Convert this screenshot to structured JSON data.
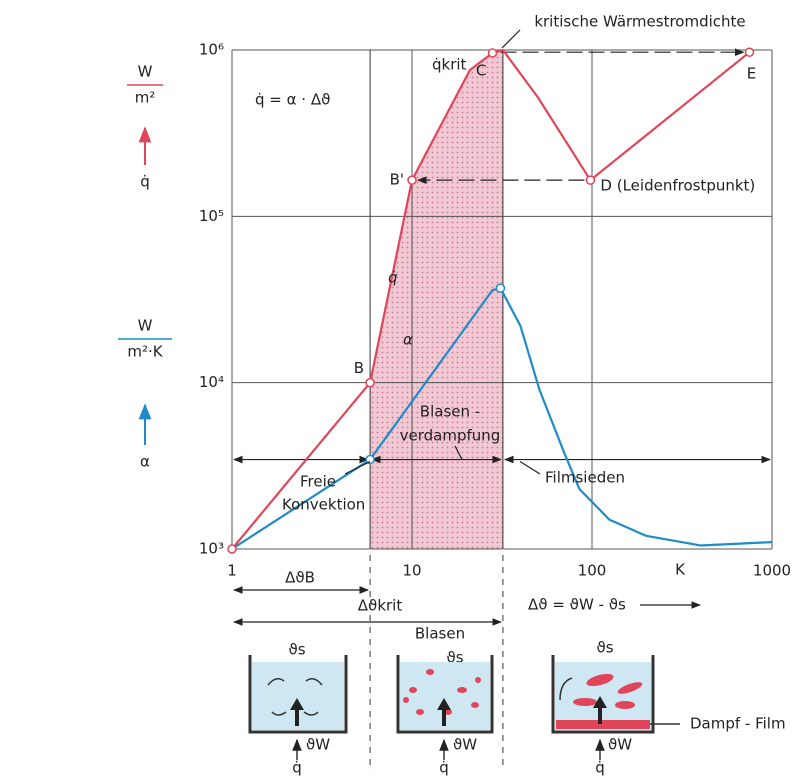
{
  "chart_data": {
    "type": "line",
    "xlim": [
      1,
      1000
    ],
    "ylim": [
      1000,
      1000000
    ],
    "log": true,
    "grid": true,
    "xticks": [
      1,
      10,
      100,
      1000
    ],
    "yticks": [
      {
        "value": 1000,
        "label": "10³"
      },
      {
        "value": 10000,
        "label": "10⁴"
      },
      {
        "value": 100000,
        "label": "10⁵"
      },
      {
        "value": 1000000,
        "label": "10⁶"
      }
    ],
    "series": [
      {
        "name": "q̇",
        "color": "#e0455a",
        "x": [
          1,
          5.85,
          10,
          21,
          28,
          32,
          50,
          98,
          750
        ],
        "values": [
          1000,
          10000,
          165000,
          760000,
          960000,
          1000000,
          520000,
          165000,
          970000
        ],
        "point_labels": [
          null,
          "B",
          "B'",
          null,
          "C",
          null,
          null,
          "D (Leidenfrostpunkt)",
          "E"
        ]
      },
      {
        "name": "α",
        "color": "#1f8bc8",
        "x": [
          1,
          5.85,
          28,
          31,
          40,
          51,
          70,
          85,
          125,
          200,
          400,
          1000
        ],
        "values": [
          1000,
          3450,
          36000,
          37000,
          22000,
          9100,
          3800,
          2300,
          1500,
          1200,
          1050,
          1100
        ]
      }
    ],
    "annotations": [
      "kritische Wärmestromdichte",
      "W",
      "m²",
      "q̇",
      "q̇ = α · Δϑ",
      "q̇krit",
      "W",
      "m²·K",
      "α",
      "Blasen -",
      "verdampfung",
      "Freie",
      "Konvektion",
      "Filmsieden",
      "K",
      "ΔϑB",
      "Δϑkrit",
      "Δϑ = ϑW - ϑs",
      "ϑs",
      "ϑW",
      "q̇",
      "Blasen",
      "ϑs",
      "ϑW",
      "q̇",
      "ϑs",
      "ϑW",
      "q̇",
      "Dampf - Film"
    ]
  }
}
